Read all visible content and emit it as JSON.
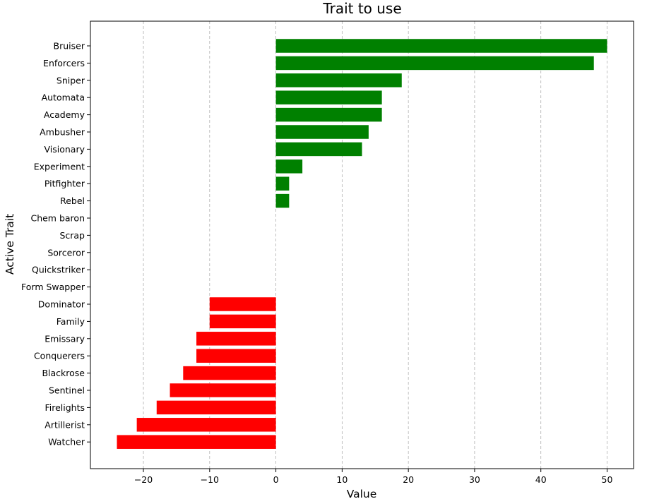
{
  "chart_data": {
    "type": "bar",
    "orientation": "horizontal",
    "title": "Trait to use",
    "xlabel": "Value",
    "ylabel": "Active Trait",
    "xlim": [
      -28,
      54
    ],
    "xticks": [
      -20,
      -10,
      0,
      10,
      20,
      30,
      40,
      50
    ],
    "xtick_labels": [
      "−20",
      "−10",
      "0",
      "10",
      "20",
      "30",
      "40",
      "50"
    ],
    "grid": "x-dashed",
    "positive_color": "#008000",
    "negative_color": "#ff0000",
    "categories": [
      "Bruiser",
      "Enforcers",
      "Sniper",
      "Automata",
      "Academy",
      "Ambusher",
      "Visionary",
      "Experiment",
      "Pitfighter",
      "Rebel",
      "Chem baron",
      "Scrap",
      "Sorceror",
      "Quickstriker",
      "Form Swapper",
      "Dominator",
      "Family",
      "Emissary",
      "Conquerers",
      "Blackrose",
      "Sentinel",
      "Firelights",
      "Artillerist",
      "Watcher"
    ],
    "values": [
      50,
      48,
      19,
      16,
      16,
      14,
      13,
      4,
      2,
      2,
      0,
      0,
      0,
      0,
      0,
      -10,
      -10,
      -12,
      -12,
      -14,
      -16,
      -18,
      -21,
      -24
    ]
  }
}
